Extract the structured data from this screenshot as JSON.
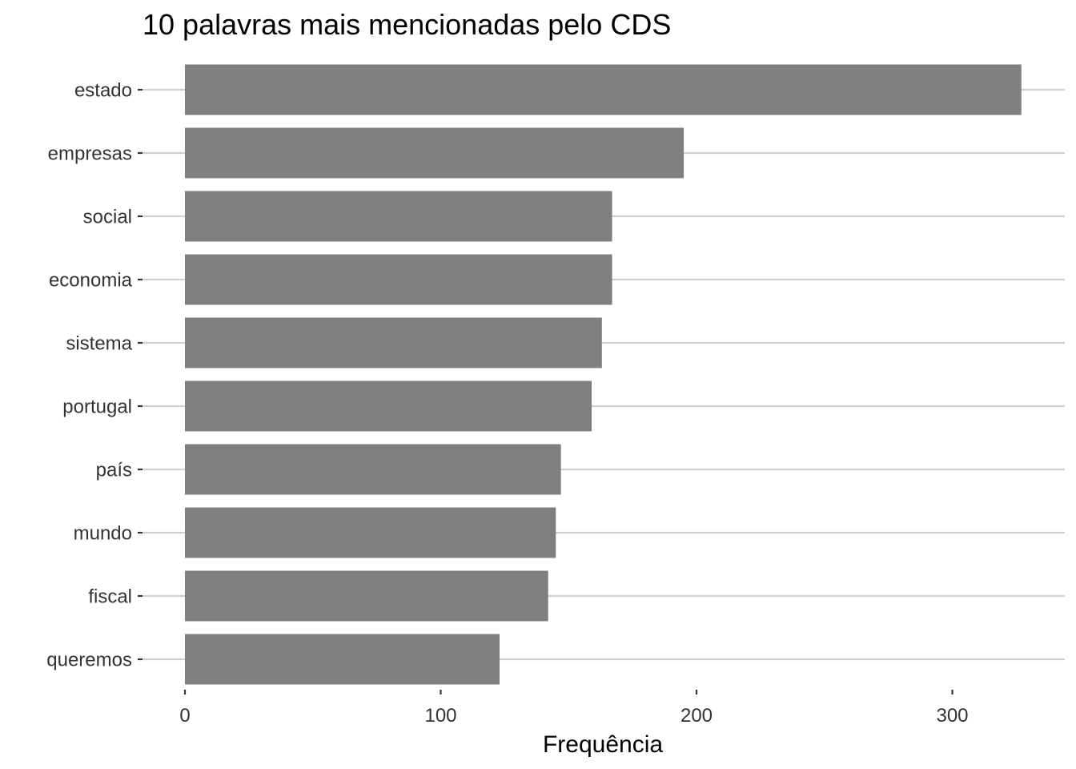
{
  "chart_data": {
    "type": "bar",
    "orientation": "horizontal",
    "title": "10 palavras mais mencionadas pelo CDS",
    "xlabel": "Frequência",
    "ylabel": "",
    "categories": [
      "estado",
      "empresas",
      "social",
      "economia",
      "sistema",
      "portugal",
      "país",
      "mundo",
      "fiscal",
      "queremos"
    ],
    "values": [
      327,
      195,
      167,
      167,
      163,
      159,
      147,
      145,
      142,
      123
    ],
    "xlim": [
      0,
      340
    ],
    "xticks": [
      0,
      100,
      200,
      300
    ],
    "grid": "horizontal major lines only",
    "bar_color": "#7f7f7f",
    "legend": "none"
  }
}
